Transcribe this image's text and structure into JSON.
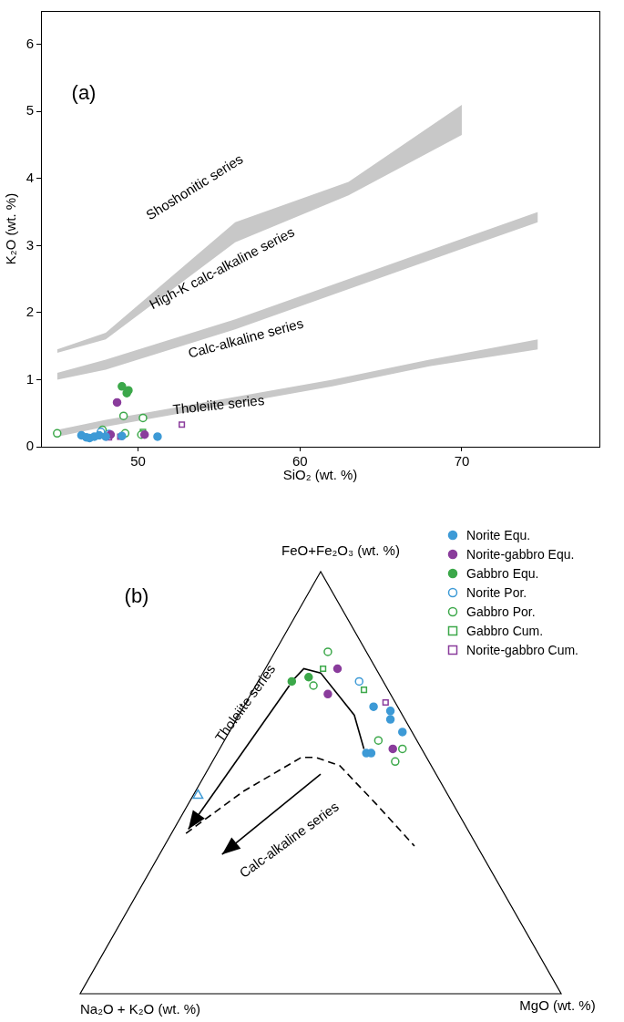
{
  "chart_data": [
    {
      "type": "scatter",
      "panel_label": "(a)",
      "x_label": "SiO₂ (wt. %)",
      "y_label": "K₂O (wt. %)",
      "xlim": [
        44,
        78.5
      ],
      "xticks": [
        50,
        60,
        70
      ],
      "ylim": [
        0,
        6.5
      ],
      "yticks": [
        0,
        1,
        2,
        3,
        4,
        5,
        6
      ],
      "grid": false,
      "annotations": [
        "Shoshonitic series",
        "High-K calc-alkaline series",
        "Calc-alkaline series",
        "Tholeiite series"
      ],
      "bands": [
        {
          "color": "#c8c8c8",
          "x": [
            45,
            48,
            62,
            68,
            74.7
          ],
          "upper": [
            0.25,
            0.4,
            1.0,
            1.3,
            1.6
          ],
          "lower": [
            0.15,
            0.3,
            0.9,
            1.2,
            1.45
          ]
        },
        {
          "color": "#c8c8c8",
          "x": [
            45,
            48,
            56,
            70,
            74.7
          ],
          "upper": [
            1.1,
            1.3,
            1.9,
            3.1,
            3.5
          ],
          "lower": [
            1.0,
            1.15,
            1.75,
            2.95,
            3.35
          ]
        },
        {
          "color": "#c8c8c8",
          "x": [
            45,
            48,
            56,
            63,
            70
          ],
          "upper": [
            1.45,
            1.7,
            3.35,
            3.95,
            5.1
          ],
          "lower": [
            1.4,
            1.6,
            3.05,
            3.75,
            4.65
          ]
        }
      ],
      "series": [
        {
          "name": "Norite Equ.",
          "color": "#3d9ad6",
          "marker": "circle",
          "x": [
            46.5,
            46.8,
            47.0,
            47.3,
            47.6,
            48.0,
            49.0,
            51.2
          ],
          "values": [
            0.17,
            0.14,
            0.13,
            0.15,
            0.17,
            0.15,
            0.16,
            0.15
          ]
        },
        {
          "name": "Norite-gabbro Equ.",
          "color": "#8a3c9c",
          "marker": "circle",
          "x": [
            48.7,
            48.3,
            50.4
          ],
          "values": [
            0.66,
            0.18,
            0.18
          ]
        },
        {
          "name": "Gabbro Equ.",
          "color": "#3ca84a",
          "marker": "circle",
          "x": [
            49.0,
            49.3,
            49.4
          ],
          "values": [
            0.9,
            0.8,
            0.84
          ]
        },
        {
          "name": "Norite Por.",
          "color": "#3d9ad6",
          "marker": "circle_open",
          "x": [
            47.7,
            48.2
          ],
          "values": [
            0.22,
            0.19
          ]
        },
        {
          "name": "Gabbro Por.",
          "color": "#3ca84a",
          "marker": "circle_open",
          "x": [
            45.0,
            47.8,
            49.1,
            49.2,
            50.3,
            50.2
          ],
          "values": [
            0.2,
            0.25,
            0.46,
            0.2,
            0.43,
            0.18
          ]
        },
        {
          "name": "Gabbro Cum.",
          "color": "#3ca84a",
          "marker": "square_open",
          "x": [
            50.3
          ],
          "values": [
            0.22
          ]
        },
        {
          "name": "Norite-gabbro Cum.",
          "color": "#8a3c9c",
          "marker": "square_open",
          "x": [
            48.2,
            48.9,
            52.7
          ],
          "values": [
            0.14,
            0.15,
            0.33
          ]
        }
      ]
    },
    {
      "type": "ternary",
      "panel_label": "(b)",
      "apices": [
        "FeO+Fe₂O₃ (wt. %)",
        "Na₂O + K₂O (wt. %)",
        "MgO (wt. %)"
      ],
      "legend": "top right",
      "annotations": [
        "Tholeiite series",
        "Calc-alkaline series"
      ],
      "series": [
        {
          "name": "Norite Equ.",
          "color": "#3d9ad6",
          "marker": "circle",
          "values": [
            [
              68,
              5,
              27
            ],
            [
              67,
              2,
              31
            ],
            [
              65,
              3,
              32
            ],
            [
              62,
              2,
              36
            ],
            [
              57,
              12,
              31
            ],
            [
              57,
              11,
              32
            ]
          ]
        },
        {
          "name": "Norite-gabbro Equ.",
          "color": "#8a3c9c",
          "marker": "circle",
          "values": [
            [
              77,
              8,
              15
            ],
            [
              71,
              13,
              16
            ],
            [
              58,
              6,
              36
            ]
          ]
        },
        {
          "name": "Gabbro Equ.",
          "color": "#3ca84a",
          "marker": "circle",
          "values": [
            [
              74,
              19,
              7
            ],
            [
              75,
              15,
              10
            ]
          ]
        },
        {
          "name": "Norite Por.",
          "color": "#3d9ad6",
          "marker": "circle_open",
          "values": [
            [
              74,
              5,
              21
            ]
          ]
        },
        {
          "name": "Gabbro Por.",
          "color": "#3ca84a",
          "marker": "circle_open",
          "values": [
            [
              81,
              8,
              11
            ],
            [
              73,
              15,
              12
            ],
            [
              60,
              8,
              32
            ],
            [
              58,
              4,
              38
            ],
            [
              55,
              7,
              38
            ]
          ]
        },
        {
          "name": "Gabbro Cum.",
          "color": "#3ca84a",
          "marker": "square_open",
          "values": [
            [
              77,
              11,
              12
            ],
            [
              72,
              5,
              23
            ]
          ]
        },
        {
          "name": "Norite-gabbro Cum.",
          "color": "#8a3c9c",
          "marker": "square_open",
          "values": [
            [
              69,
              2,
              29
            ]
          ]
        },
        {
          "color": "#3d9ad6",
          "marker": "triangle_open",
          "values": [
            [
              47,
              52,
              1
            ]
          ]
        },
        {
          "type": "line",
          "color": "#000000",
          "line_style": "solid",
          "values": [
            [
              74,
              19,
              7
            ],
            [
              77,
              15,
              8
            ],
            [
              76,
              12,
              12
            ],
            [
              71,
              11,
              18
            ],
            [
              66,
              10,
              24
            ],
            [
              58,
              12,
              30
            ]
          ]
        },
        {
          "type": "line",
          "color": "#000000",
          "line_style": "arrow",
          "values": [
            [
              73,
              20,
              7
            ],
            [
              39,
              58,
              3
            ]
          ]
        },
        {
          "type": "line",
          "color": "#000000",
          "line_style": "dashed",
          "values": [
            [
              38,
              59,
              3
            ],
            [
              48,
              42,
              10
            ],
            [
              56,
              26,
              18
            ],
            [
              56,
              23,
              21
            ],
            [
              54,
              19,
              27
            ],
            [
              45,
              16,
              39
            ],
            [
              35,
              13,
              52
            ]
          ]
        },
        {
          "type": "line",
          "color": "#000000",
          "line_style": "arrow",
          "values": [
            [
              52,
              24,
              24
            ],
            [
              33,
              54,
              13
            ]
          ]
        }
      ]
    }
  ]
}
